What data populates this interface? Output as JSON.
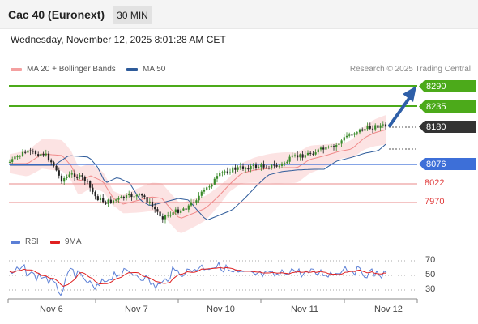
{
  "header": {
    "title": "Cac 40 (Euronext)",
    "timeframe": "30 MIN",
    "datetime": "Wednesday, November 12, 2025 8:01:28 AM CET"
  },
  "legend": {
    "ma20_label": "MA 20 + Bollinger Bands",
    "ma50_label": "MA 50",
    "ma20_color": "#f4a0a0",
    "ma50_color": "#2e5b9a",
    "copyright": "Research © 2025 Trading Central"
  },
  "levels": [
    {
      "value": "8290",
      "type": "resistance",
      "color": "#4caa1a"
    },
    {
      "value": "8235",
      "type": "resistance",
      "color": "#4caa1a"
    },
    {
      "value": "8180",
      "type": "last",
      "color": "#333333"
    },
    {
      "value": "8076",
      "type": "pivot",
      "color": "#3d6fd8"
    },
    {
      "value": "8022",
      "type": "support",
      "color": "#e03a3a"
    },
    {
      "value": "7970",
      "type": "support",
      "color": "#e03a3a"
    }
  ],
  "rsi_panel": {
    "rsi_label": "RSI",
    "ma_label": "9MA",
    "rsi_color": "#5b7fd6",
    "ma_color": "#e02020",
    "ticks": [
      "70",
      "50",
      "30"
    ]
  },
  "x_axis": {
    "labels": [
      "Nov 6",
      "Nov 7",
      "Nov 10",
      "Nov 11",
      "Nov 12"
    ]
  },
  "chart_data": {
    "type": "line",
    "title": "Cac 40 (Euronext)",
    "xlabel": "",
    "ylabel": "",
    "x": [
      "Nov 6",
      "Nov 7",
      "Nov 10",
      "Nov 11",
      "Nov 12"
    ],
    "series": [
      {
        "name": "MA 20 + Bollinger Bands",
        "values": [
          8112,
          7985,
          8015,
          8095,
          8150
        ]
      },
      {
        "name": "MA 50",
        "values": [
          8090,
          8015,
          7985,
          8050,
          8125
        ]
      }
    ],
    "levels": [
      8290,
      8235,
      8180,
      8076,
      8022,
      7970
    ],
    "rsi": {
      "ticks": [
        70,
        50,
        30
      ]
    }
  }
}
